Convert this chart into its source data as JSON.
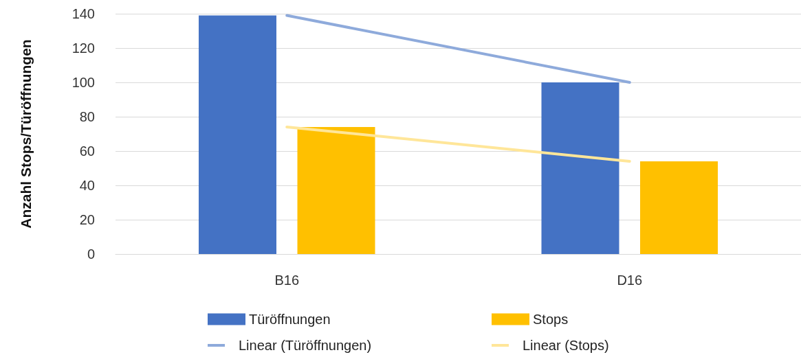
{
  "chart_data": {
    "type": "bar",
    "ylabel": "Anzahl Stops/Türöffnungen",
    "categories": [
      "B16",
      "D16"
    ],
    "series": [
      {
        "name": "Türöffnungen",
        "color": "#4472c4",
        "values": [
          139,
          100
        ]
      },
      {
        "name": "Stops",
        "color": "#ffc000",
        "values": [
          74,
          54
        ]
      },
      {
        "name": "Linear (Türöffnungen)",
        "type": "line",
        "color": "#8eaadb",
        "values": [
          139,
          100
        ]
      },
      {
        "name": "Linear (Stops)",
        "type": "line",
        "color": "#ffe699",
        "values": [
          74,
          54
        ]
      }
    ],
    "ylim": [
      0,
      140
    ],
    "yticks": [
      0,
      20,
      40,
      60,
      80,
      100,
      120,
      140
    ],
    "grid": "y",
    "legend": "bottom",
    "marker": "none"
  }
}
